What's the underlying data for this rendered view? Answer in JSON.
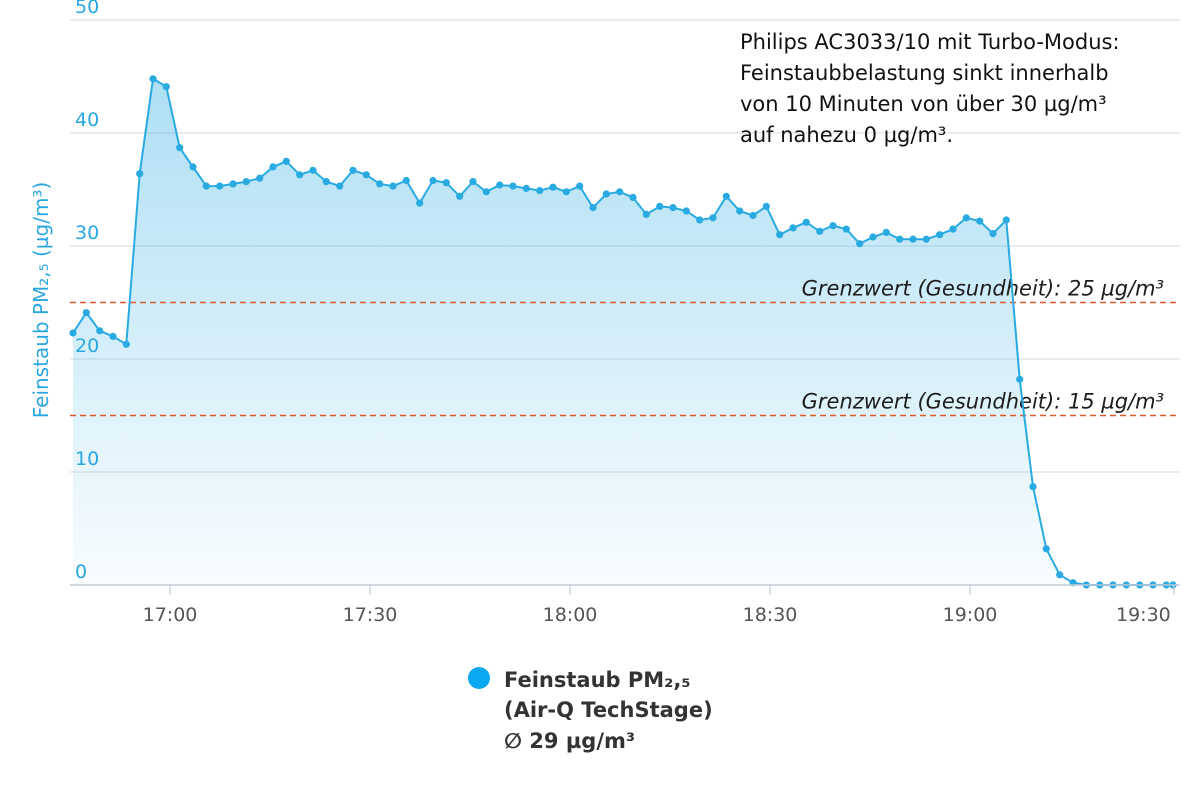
{
  "chart_data": {
    "type": "area",
    "ylabel": "Feinstaub PM₂,₅ (µg/m³)",
    "ylim": [
      0,
      50
    ],
    "yticks": [
      "0",
      "10",
      "20",
      "30",
      "40",
      "50"
    ],
    "xticks": [
      "17:00",
      "17:30",
      "18:00",
      "18:30",
      "19:00",
      "19:30"
    ],
    "grid": true,
    "annotation": [
      "Philips AC3033/10 mit Turbo-Modus:",
      "Feinstaubbelastung sinkt innerhalb",
      "von 10 Minuten von über 30 µg/m³",
      "auf nahezu 0 µg/m³."
    ],
    "thresholds": [
      {
        "value": 25,
        "label": "Grenzwert (Gesundheit): 25 µg/m³"
      },
      {
        "value": 15,
        "label": "Grenzwert (Gesundheit): 15 µg/m³"
      }
    ],
    "series": [
      {
        "name": "Feinstaub PM₂,₅",
        "color": "#29abe2",
        "x": [
          "16:45",
          "16:47",
          "16:49",
          "16:51",
          "16:53",
          "16:55",
          "16:57",
          "16:59",
          "17:01",
          "17:03",
          "17:05",
          "17:07",
          "17:09",
          "17:11",
          "17:13",
          "17:15",
          "17:17",
          "17:19",
          "17:21",
          "17:23",
          "17:25",
          "17:27",
          "17:29",
          "17:31",
          "17:33",
          "17:35",
          "17:37",
          "17:39",
          "17:41",
          "17:43",
          "17:45",
          "17:47",
          "17:49",
          "17:51",
          "17:53",
          "17:55",
          "17:57",
          "17:59",
          "18:01",
          "18:03",
          "18:05",
          "18:07",
          "18:09",
          "18:11",
          "18:13",
          "18:15",
          "18:17",
          "18:19",
          "18:21",
          "18:23",
          "18:25",
          "18:27",
          "18:29",
          "18:31",
          "18:33",
          "18:35",
          "18:37",
          "18:39",
          "18:41",
          "18:43",
          "18:45",
          "18:47",
          "18:49",
          "18:51",
          "18:53",
          "18:55",
          "18:57",
          "18:59",
          "19:01",
          "19:03",
          "19:05",
          "19:07",
          "19:09",
          "19:11",
          "19:13",
          "19:15",
          "19:17",
          "19:19",
          "19:21",
          "19:23",
          "19:25",
          "19:27",
          "19:29",
          "19:30"
        ],
        "values": [
          22.3,
          24.1,
          22.5,
          22.0,
          21.3,
          36.4,
          44.8,
          44.1,
          38.7,
          37.0,
          35.3,
          35.3,
          35.5,
          35.7,
          36.0,
          37.0,
          37.5,
          36.3,
          36.7,
          35.7,
          35.3,
          36.7,
          36.3,
          35.5,
          35.3,
          35.8,
          33.8,
          35.8,
          35.6,
          34.4,
          35.7,
          34.8,
          35.4,
          35.3,
          35.1,
          34.9,
          35.2,
          34.8,
          35.3,
          33.4,
          34.6,
          34.8,
          34.3,
          32.8,
          33.5,
          33.4,
          33.1,
          32.3,
          32.5,
          34.4,
          33.1,
          32.7,
          33.5,
          31.0,
          31.6,
          32.1,
          31.3,
          31.8,
          31.5,
          30.2,
          30.8,
          31.2,
          30.6,
          30.6,
          30.6,
          31.0,
          31.5,
          32.5,
          32.2,
          31.1,
          32.3,
          18.2,
          8.7,
          3.2,
          0.9,
          0.2,
          0.0,
          0.0,
          0.0,
          0.0,
          0.0,
          0.0,
          0.0,
          0.0
        ]
      }
    ]
  },
  "legend": {
    "line1": "Feinstaub PM₂,₅",
    "line2": "(Air-Q TechStage)",
    "line3": "∅ 29 µg/m³"
  }
}
